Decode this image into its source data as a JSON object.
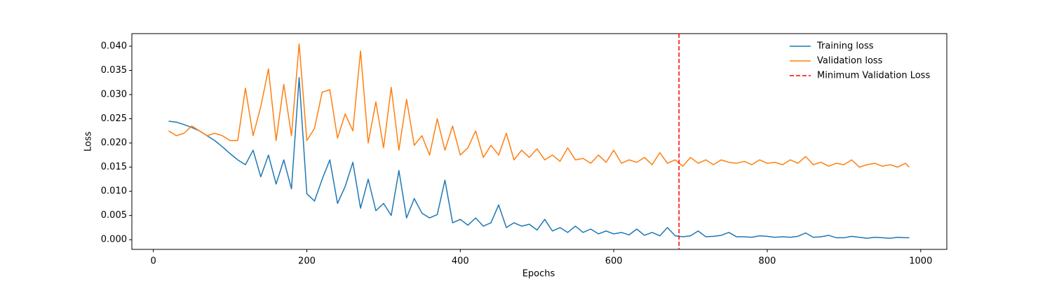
{
  "chart_data": {
    "type": "line",
    "xlabel": "Epochs",
    "ylabel": "Loss",
    "x": [
      20,
      30,
      40,
      50,
      60,
      70,
      80,
      90,
      100,
      110,
      120,
      130,
      140,
      150,
      160,
      170,
      180,
      190,
      200,
      210,
      220,
      230,
      240,
      250,
      260,
      270,
      280,
      290,
      300,
      310,
      320,
      330,
      340,
      350,
      360,
      370,
      380,
      390,
      400,
      410,
      420,
      430,
      440,
      450,
      460,
      470,
      480,
      490,
      500,
      510,
      520,
      530,
      540,
      550,
      560,
      570,
      580,
      590,
      600,
      610,
      620,
      630,
      640,
      650,
      660,
      670,
      680,
      690,
      700,
      710,
      720,
      730,
      740,
      750,
      760,
      770,
      780,
      790,
      800,
      810,
      820,
      830,
      840,
      850,
      860,
      870,
      880,
      890,
      900,
      910,
      920,
      930,
      940,
      950,
      960,
      970,
      980,
      985
    ],
    "series": [
      {
        "name": "Training loss",
        "color": "#1f77b4",
        "values": [
          0.0245,
          0.0243,
          0.0238,
          0.0232,
          0.0225,
          0.0215,
          0.0205,
          0.0192,
          0.0178,
          0.0165,
          0.0155,
          0.0185,
          0.013,
          0.0175,
          0.0115,
          0.0165,
          0.0105,
          0.0335,
          0.0095,
          0.008,
          0.0125,
          0.0165,
          0.0075,
          0.011,
          0.016,
          0.0065,
          0.0125,
          0.006,
          0.0075,
          0.005,
          0.0143,
          0.0045,
          0.0085,
          0.0055,
          0.0045,
          0.0052,
          0.0123,
          0.0035,
          0.0042,
          0.003,
          0.0045,
          0.0028,
          0.0035,
          0.0072,
          0.0025,
          0.0035,
          0.0028,
          0.0032,
          0.002,
          0.0042,
          0.0018,
          0.0025,
          0.0015,
          0.0028,
          0.0015,
          0.0022,
          0.0012,
          0.0018,
          0.0012,
          0.0015,
          0.001,
          0.0022,
          0.0009,
          0.0015,
          0.0008,
          0.0025,
          0.0008,
          0.0006,
          0.0008,
          0.0018,
          0.0006,
          0.0007,
          0.0009,
          0.0015,
          0.0006,
          0.0006,
          0.0005,
          0.0008,
          0.0007,
          0.0005,
          0.0006,
          0.0005,
          0.0007,
          0.0014,
          0.0005,
          0.0006,
          0.0009,
          0.0004,
          0.0004,
          0.0007,
          0.0005,
          0.0003,
          0.0005,
          0.0004,
          0.0003,
          0.0005,
          0.0004,
          0.0004
        ]
      },
      {
        "name": "Validation loss",
        "color": "#ff7f0e",
        "values": [
          0.0225,
          0.0215,
          0.022,
          0.0235,
          0.0225,
          0.0215,
          0.022,
          0.0215,
          0.0205,
          0.0205,
          0.0313,
          0.0215,
          0.0275,
          0.0353,
          0.0205,
          0.0321,
          0.0215,
          0.0405,
          0.0205,
          0.023,
          0.0305,
          0.031,
          0.021,
          0.026,
          0.0225,
          0.039,
          0.02,
          0.0285,
          0.019,
          0.0315,
          0.0185,
          0.029,
          0.0195,
          0.0215,
          0.0175,
          0.025,
          0.0185,
          0.0235,
          0.0175,
          0.019,
          0.0225,
          0.017,
          0.0195,
          0.0175,
          0.022,
          0.0165,
          0.0185,
          0.017,
          0.0188,
          0.0165,
          0.0175,
          0.0162,
          0.019,
          0.0165,
          0.0168,
          0.0158,
          0.0175,
          0.016,
          0.0185,
          0.0158,
          0.0165,
          0.016,
          0.017,
          0.0155,
          0.018,
          0.0158,
          0.0165,
          0.0152,
          0.017,
          0.0158,
          0.0165,
          0.0155,
          0.0165,
          0.016,
          0.0158,
          0.0162,
          0.0155,
          0.0165,
          0.0158,
          0.016,
          0.0155,
          0.0165,
          0.0158,
          0.0172,
          0.0155,
          0.016,
          0.0152,
          0.0158,
          0.0155,
          0.0165,
          0.015,
          0.0155,
          0.0158,
          0.0152,
          0.0155,
          0.015,
          0.0158,
          0.015
        ]
      }
    ],
    "vline": {
      "name": "Minimum Validation Loss",
      "x": 685,
      "color": "#ff0000"
    },
    "xlim": [
      -28,
      1034
    ],
    "xticks": [
      0,
      200,
      400,
      600,
      800,
      1000
    ],
    "ylim": [
      -0.002,
      0.0426
    ],
    "yticks": [
      {
        "value": 0,
        "label": "0.000"
      },
      {
        "value": 0.005,
        "label": "0.005"
      },
      {
        "value": 0.01,
        "label": "0.010"
      },
      {
        "value": 0.015,
        "label": "0.015"
      },
      {
        "value": 0.02,
        "label": "0.020"
      },
      {
        "value": 0.025,
        "label": "0.025"
      },
      {
        "value": 0.03,
        "label": "0.030"
      },
      {
        "value": 0.035,
        "label": "0.035"
      },
      {
        "value": 0.04,
        "label": "0.040"
      }
    ],
    "legend": "upper right",
    "grid": false
  }
}
